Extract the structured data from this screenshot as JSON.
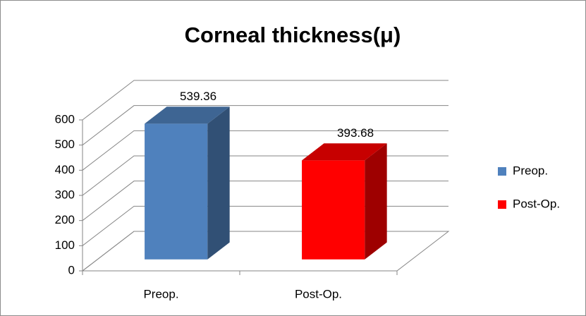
{
  "chart_data": {
    "type": "bar3d",
    "title": "Corneal thickness(μ)",
    "categories": [
      "Preop.",
      "Post-Op."
    ],
    "series": [
      {
        "name": "Preop.",
        "color": "#4f81bd",
        "values": [
          539.36,
          null
        ]
      },
      {
        "name": "Post-Op.",
        "color": "#ff0000",
        "values": [
          null,
          393.68
        ]
      }
    ],
    "ylim": [
      0,
      600
    ],
    "yticks": [
      0,
      100,
      200,
      300,
      400,
      500,
      600
    ],
    "grid": true,
    "legend": "right"
  }
}
